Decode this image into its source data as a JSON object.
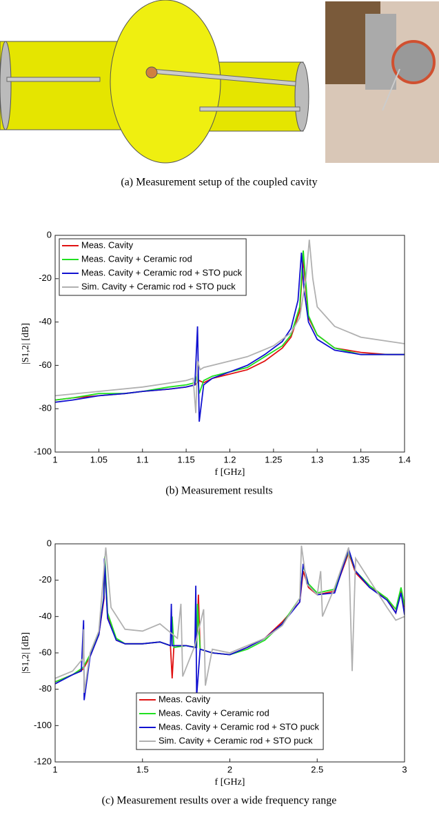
{
  "subfigure_a": {
    "caption": "(a) Measurement setup of the coupled cavity"
  },
  "chart_data": [
    {
      "type": "line",
      "caption": "(b) Measurement results",
      "xlabel": "f [GHz]",
      "ylabel": "|S1,2| [dB]",
      "xlim": [
        1,
        1.4
      ],
      "ylim": [
        -100,
        0
      ],
      "xticks": [
        1,
        1.05,
        1.1,
        1.15,
        1.2,
        1.25,
        1.3,
        1.35,
        1.4
      ],
      "yticks": [
        -100,
        -80,
        -60,
        -40,
        -20,
        0
      ],
      "legend": "upper left",
      "series": [
        {
          "name": "Meas. Cavity",
          "color": "#e01010",
          "x": [
            1,
            1.02,
            1.05,
            1.08,
            1.1,
            1.13,
            1.15,
            1.16,
            1.165,
            1.17,
            1.18,
            1.2,
            1.22,
            1.24,
            1.26,
            1.27,
            1.28,
            1.284,
            1.286,
            1.29,
            1.3,
            1.32,
            1.35,
            1.38,
            1.4
          ],
          "values": [
            -76,
            -75,
            -74,
            -73,
            -72,
            -71,
            -70,
            -69,
            -67,
            -68,
            -66,
            -64,
            -62,
            -58,
            -52,
            -47,
            -35,
            -11,
            -20,
            -38,
            -46,
            -52,
            -54,
            -55,
            -55
          ]
        },
        {
          "name": "Meas. Cavity + Ceramic rod",
          "color": "#20e020",
          "x": [
            1,
            1.02,
            1.05,
            1.08,
            1.1,
            1.13,
            1.15,
            1.16,
            1.163,
            1.165,
            1.17,
            1.18,
            1.2,
            1.22,
            1.24,
            1.26,
            1.27,
            1.28,
            1.284,
            1.287,
            1.29,
            1.3,
            1.32,
            1.35,
            1.38,
            1.4
          ],
          "values": [
            -76,
            -75,
            -73,
            -73,
            -72,
            -70,
            -69,
            -68,
            -64,
            -73,
            -67,
            -65,
            -63,
            -61,
            -56,
            -51,
            -46,
            -33,
            -7,
            -22,
            -37,
            -46,
            -52,
            -55,
            -55,
            -55
          ]
        },
        {
          "name": "Meas. Cavity + Ceramic rod + STO puck",
          "color": "#1010d0",
          "x": [
            1,
            1.02,
            1.05,
            1.08,
            1.1,
            1.13,
            1.15,
            1.16,
            1.163,
            1.165,
            1.17,
            1.18,
            1.2,
            1.22,
            1.24,
            1.26,
            1.27,
            1.278,
            1.282,
            1.285,
            1.29,
            1.3,
            1.32,
            1.35,
            1.38,
            1.4
          ],
          "values": [
            -77,
            -76,
            -74,
            -73,
            -72,
            -71,
            -70,
            -69,
            -42,
            -86,
            -69,
            -66,
            -63,
            -60,
            -55,
            -49,
            -43,
            -30,
            -8,
            -25,
            -40,
            -48,
            -53,
            -55,
            -55,
            -55
          ]
        },
        {
          "name": "Sim. Cavity + Ceramic rod + STO puck",
          "color": "#b0b0b0",
          "x": [
            1,
            1.05,
            1.1,
            1.15,
            1.158,
            1.161,
            1.163,
            1.166,
            1.17,
            1.2,
            1.22,
            1.25,
            1.27,
            1.28,
            1.287,
            1.291,
            1.295,
            1.3,
            1.32,
            1.35,
            1.4
          ],
          "values": [
            -74,
            -72,
            -70,
            -67,
            -66,
            -82,
            -58,
            -62,
            -61,
            -58,
            -56,
            -51,
            -45,
            -38,
            -20,
            -2,
            -20,
            -33,
            -42,
            -47,
            -50
          ]
        }
      ]
    },
    {
      "type": "line",
      "caption": "(c) Measurement results over a wide frequency range",
      "xlabel": "f [GHz]",
      "ylabel": "|S1,2| [dB]",
      "xlim": [
        1,
        3
      ],
      "ylim": [
        -120,
        0
      ],
      "xticks": [
        1,
        1.5,
        2,
        2.5,
        3
      ],
      "yticks": [
        -120,
        -100,
        -80,
        -60,
        -40,
        -20,
        0
      ],
      "legend": "lower center",
      "series": [
        {
          "name": "Meas. Cavity",
          "color": "#e01010",
          "x": [
            1,
            1.1,
            1.16,
            1.2,
            1.25,
            1.28,
            1.285,
            1.3,
            1.35,
            1.4,
            1.5,
            1.6,
            1.66,
            1.67,
            1.68,
            1.75,
            1.81,
            1.82,
            1.83,
            1.9,
            2,
            2.1,
            2.2,
            2.3,
            2.4,
            2.42,
            2.45,
            2.5,
            2.6,
            2.68,
            2.72,
            2.8,
            2.9,
            2.95,
            2.98,
            3
          ],
          "values": [
            -76,
            -72,
            -69,
            -62,
            -50,
            -30,
            -11,
            -40,
            -53,
            -55,
            -55,
            -54,
            -56,
            -74,
            -56,
            -56,
            -57,
            -28,
            -58,
            -60,
            -61,
            -57,
            -52,
            -43,
            -32,
            -15,
            -24,
            -28,
            -26,
            -5,
            -16,
            -24,
            -30,
            -38,
            -26,
            -35
          ]
        },
        {
          "name": "Meas. Cavity + Ceramic rod",
          "color": "#20e020",
          "x": [
            1,
            1.1,
            1.16,
            1.2,
            1.25,
            1.28,
            1.284,
            1.3,
            1.35,
            1.4,
            1.5,
            1.6,
            1.66,
            1.67,
            1.68,
            1.75,
            1.81,
            1.815,
            1.83,
            1.9,
            2,
            2.1,
            2.2,
            2.3,
            2.4,
            2.42,
            2.45,
            2.5,
            2.6,
            2.68,
            2.72,
            2.8,
            2.9,
            2.95,
            2.98,
            3
          ],
          "values": [
            -76,
            -72,
            -68,
            -61,
            -49,
            -28,
            -7,
            -38,
            -52,
            -55,
            -55,
            -54,
            -56,
            -40,
            -57,
            -56,
            -57,
            -33,
            -58,
            -60,
            -61,
            -58,
            -53,
            -44,
            -30,
            -12,
            -22,
            -27,
            -25,
            -4,
            -15,
            -23,
            -30,
            -36,
            -24,
            -34
          ]
        },
        {
          "name": "Meas. Cavity + Ceramic rod + STO puck",
          "color": "#1010d0",
          "x": [
            1,
            1.1,
            1.15,
            1.163,
            1.166,
            1.2,
            1.25,
            1.278,
            1.282,
            1.3,
            1.35,
            1.4,
            1.5,
            1.6,
            1.66,
            1.665,
            1.67,
            1.75,
            1.8,
            1.805,
            1.81,
            1.83,
            1.9,
            2,
            2.1,
            2.2,
            2.3,
            2.4,
            2.42,
            2.45,
            2.5,
            2.6,
            2.68,
            2.72,
            2.8,
            2.9,
            2.95,
            2.98,
            3
          ],
          "values": [
            -77,
            -72,
            -70,
            -42,
            -86,
            -62,
            -50,
            -30,
            -8,
            -41,
            -53,
            -55,
            -55,
            -54,
            -56,
            -33,
            -56,
            -56,
            -57,
            -23,
            -84,
            -58,
            -60,
            -61,
            -57,
            -52,
            -44,
            -32,
            -11,
            -23,
            -28,
            -27,
            -3,
            -15,
            -24,
            -31,
            -38,
            -27,
            -39
          ]
        },
        {
          "name": "Sim. Cavity + Ceramic rod + STO puck",
          "color": "#b0b0b0",
          "x": [
            1,
            1.1,
            1.16,
            1.163,
            1.166,
            1.2,
            1.25,
            1.29,
            1.32,
            1.4,
            1.5,
            1.6,
            1.65,
            1.7,
            1.72,
            1.73,
            1.8,
            1.85,
            1.86,
            1.9,
            2,
            2.2,
            2.3,
            2.4,
            2.41,
            2.44,
            2.5,
            2.52,
            2.53,
            2.6,
            2.68,
            2.7,
            2.72,
            2.8,
            2.9,
            2.95,
            3
          ],
          "values": [
            -74,
            -70,
            -63,
            -47,
            -82,
            -60,
            -48,
            -2,
            -35,
            -47,
            -48,
            -44,
            -48,
            -52,
            -33,
            -73,
            -56,
            -36,
            -78,
            -58,
            -60,
            -52,
            -45,
            -30,
            -1,
            -22,
            -28,
            -15,
            -40,
            -24,
            -2,
            -70,
            -8,
            -20,
            -35,
            -42,
            -40
          ]
        }
      ]
    }
  ]
}
